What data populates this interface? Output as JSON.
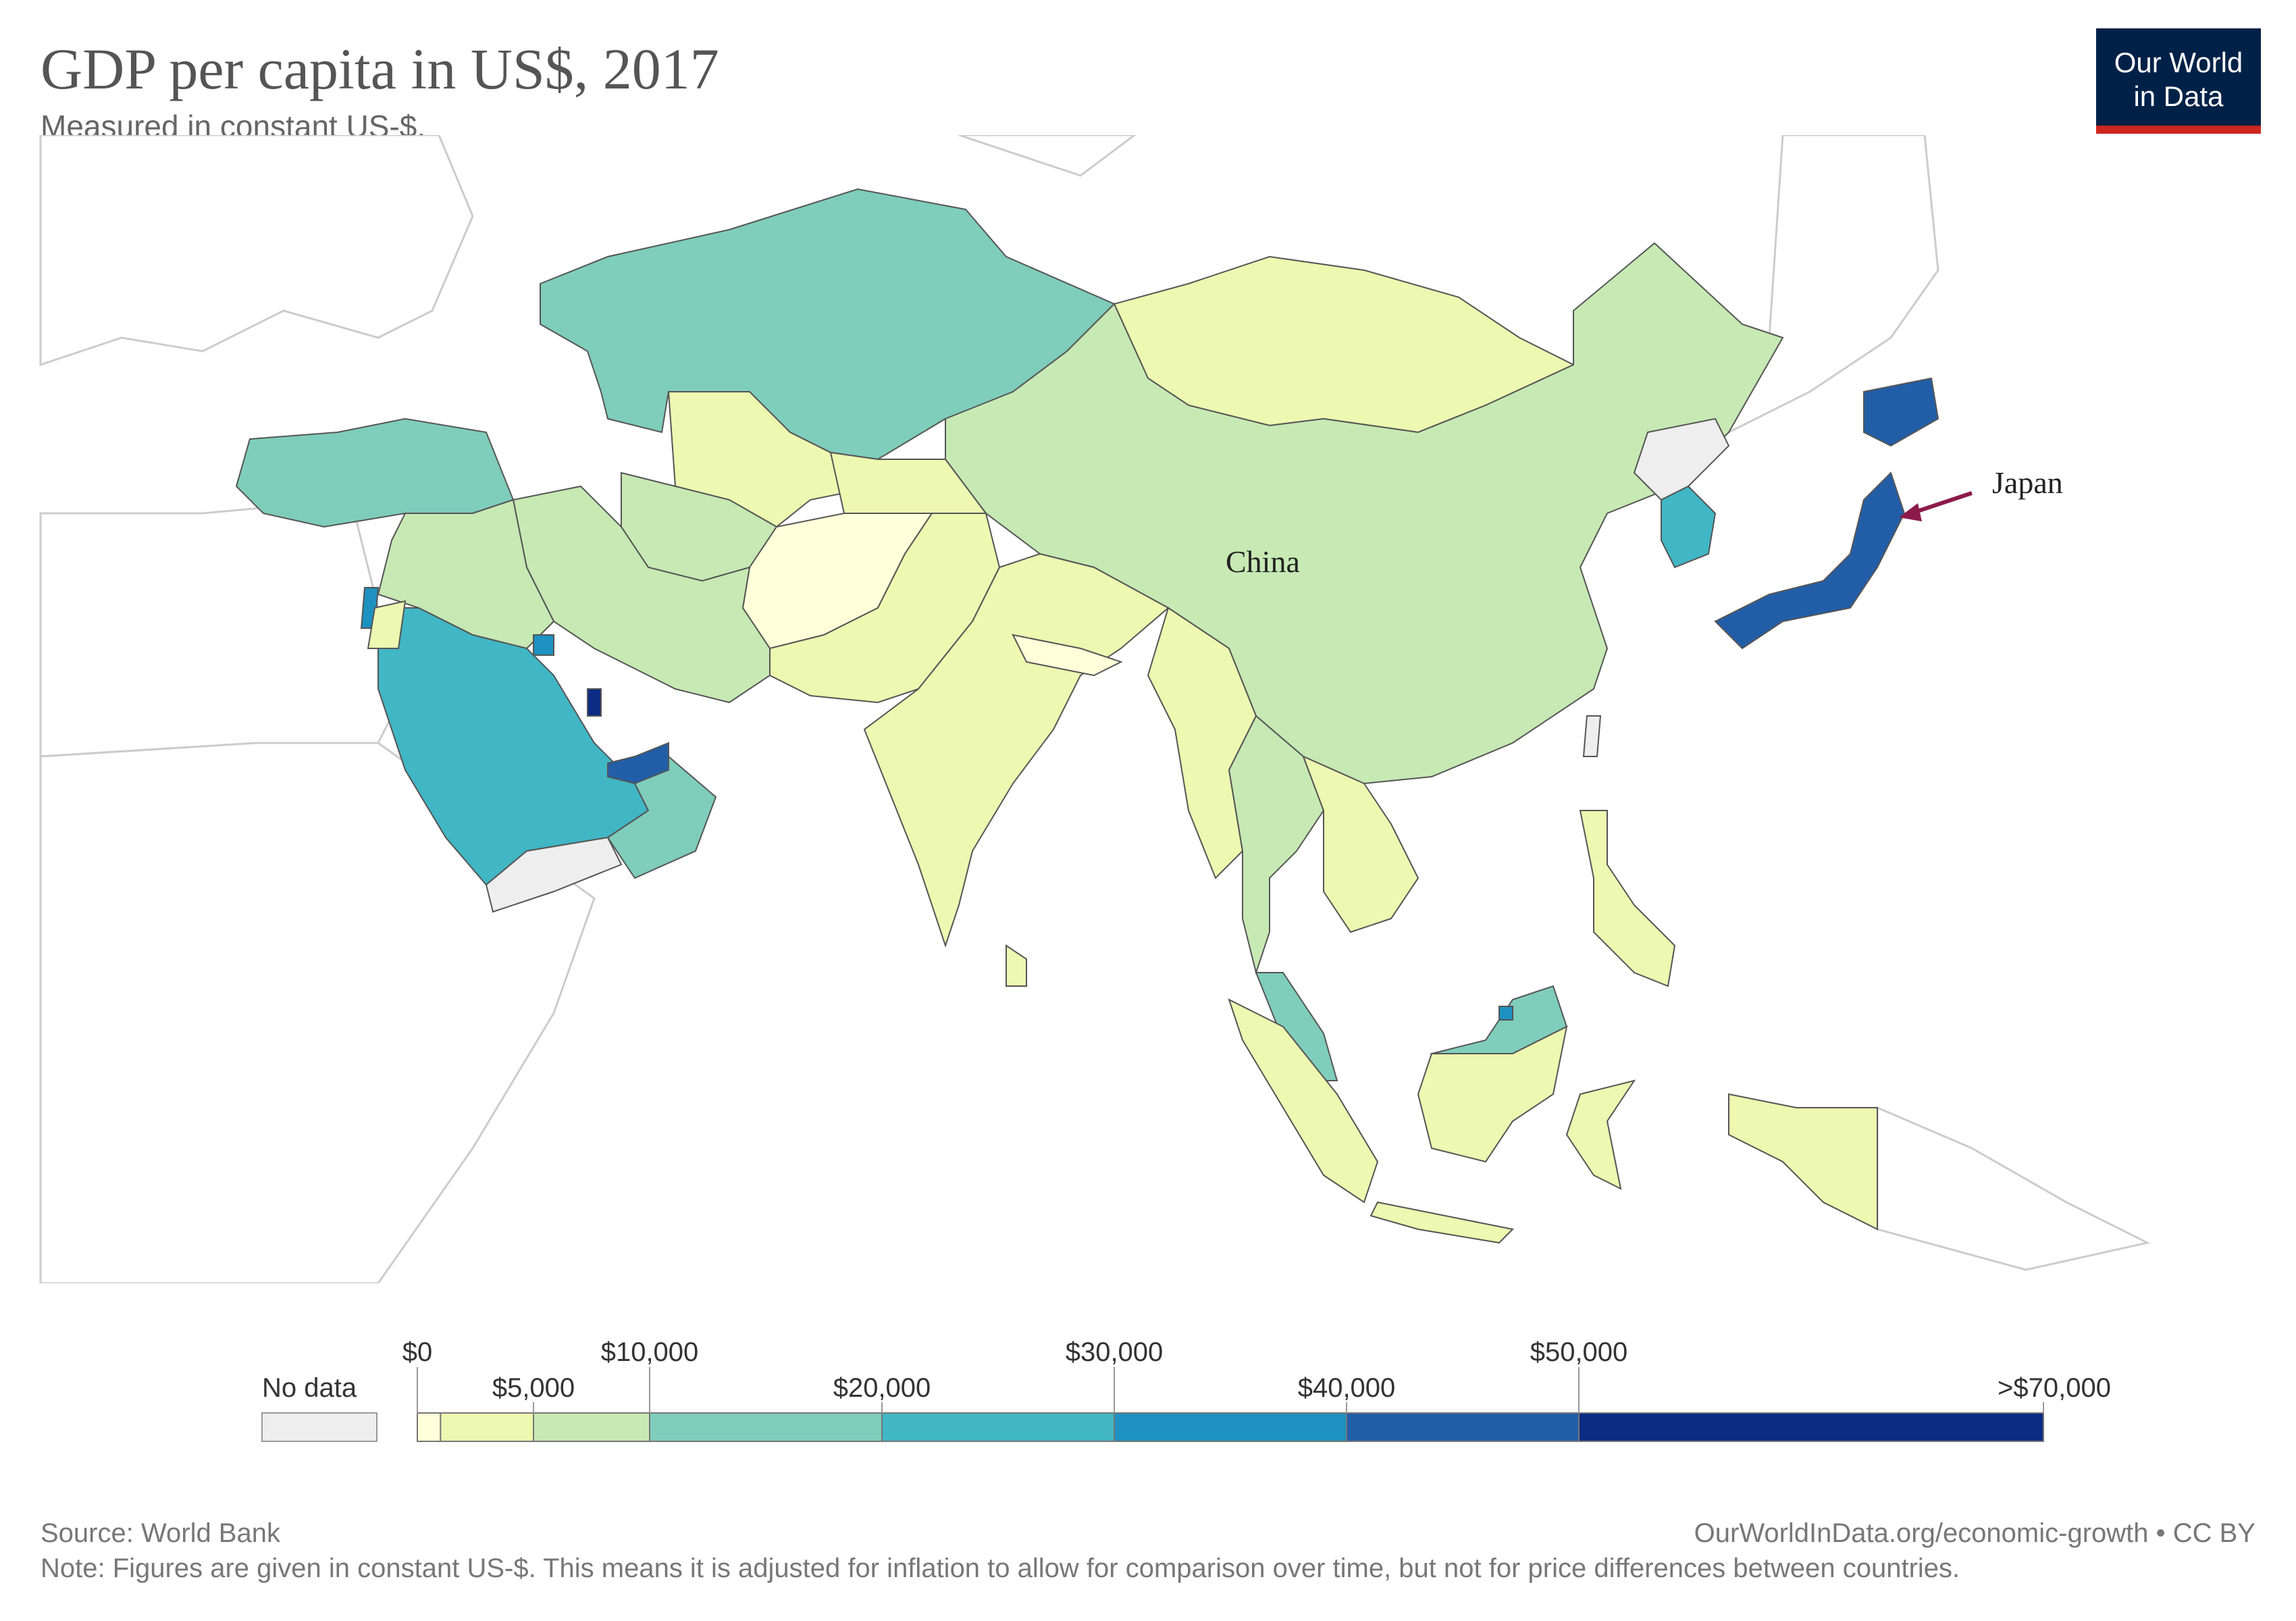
{
  "title": "GDP per capita in US$, 2017",
  "subtitle": "Measured in constant US-$.",
  "logo": {
    "line1": "Our World",
    "line2": "in Data"
  },
  "map_labels": [
    {
      "id": "china",
      "text": "China"
    },
    {
      "id": "japan",
      "text": "Japan"
    }
  ],
  "legend": {
    "no_data_label": "No data",
    "no_data_color": "#eeeeee",
    "ticks": [
      "$0",
      "$5,000",
      "$10,000",
      "$20,000",
      "$30,000",
      "$40,000",
      "$50,000",
      ">$70,000"
    ],
    "bins": [
      {
        "from": 0,
        "to": 1000,
        "color": "#ffffd9"
      },
      {
        "from": 1000,
        "to": 5000,
        "color": "#edf8b1"
      },
      {
        "from": 5000,
        "to": 10000,
        "color": "#c7e9b4"
      },
      {
        "from": 10000,
        "to": 20000,
        "color": "#7fcdbb"
      },
      {
        "from": 20000,
        "to": 30000,
        "color": "#41b6c4"
      },
      {
        "from": 30000,
        "to": 40000,
        "color": "#1d91c0"
      },
      {
        "from": 40000,
        "to": 50000,
        "color": "#225ea8"
      },
      {
        "from": 50000,
        "to": 70000,
        "color": "#0c2c84"
      }
    ]
  },
  "colors": {
    "background_country": "#ffffff",
    "border": "#cccccc",
    "arrow": "#8b1a4a",
    "logo_bg": "#002147",
    "logo_accent": "#ce261e"
  },
  "footer": {
    "source": "Source: World Bank",
    "site": "OurWorldInData.org/economic-growth • CC BY",
    "note": "Note: Figures are given in constant US-$. This means it is adjusted for inflation to allow for comparison over time, but not for price differences between countries."
  }
}
